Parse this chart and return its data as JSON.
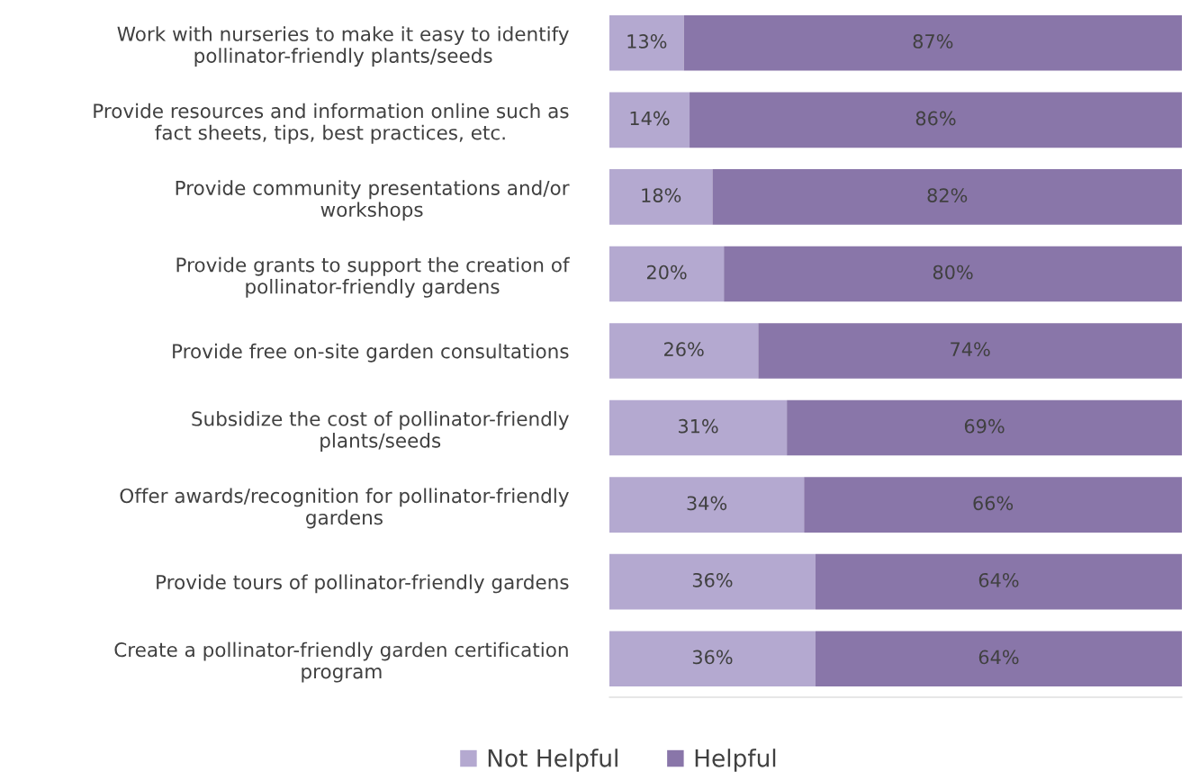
{
  "chart_data": {
    "type": "bar",
    "orientation": "horizontal",
    "stacked": true,
    "categories": [
      "Work with nurseries to make it easy to identify\npollinator-friendly plants/seeds",
      "Provide resources and information online such as\nfact sheets, tips, best practices, etc.",
      "Provide community presentations and/or\nworkshops",
      "Provide grants to support the creation of\npollinator-friendly gardens",
      "Provide free on-site garden consultations",
      "Subsidize the cost of pollinator-friendly\nplants/seeds",
      "Offer awards/recognition for pollinator-friendly\ngardens",
      "Provide tours of pollinator-friendly gardens",
      "Create a pollinator-friendly garden certification\nprogram"
    ],
    "series": [
      {
        "name": "Not Helpful",
        "color": "#b4a9d0",
        "values": [
          13,
          14,
          18,
          20,
          26,
          31,
          34,
          36,
          36
        ],
        "value_labels": [
          "13%",
          "14%",
          "18%",
          "20%",
          "26%",
          "31%",
          "34%",
          "36%",
          "36%"
        ]
      },
      {
        "name": "Helpful",
        "color": "#8976a9",
        "values": [
          87,
          86,
          82,
          80,
          74,
          69,
          66,
          64,
          64
        ],
        "value_labels": [
          "87%",
          "86%",
          "82%",
          "80%",
          "74%",
          "69%",
          "66%",
          "64%",
          "64%"
        ]
      }
    ],
    "xlim": [
      0,
      100
    ],
    "tick_labels": "y",
    "grid": false,
    "legend": "bottom"
  }
}
